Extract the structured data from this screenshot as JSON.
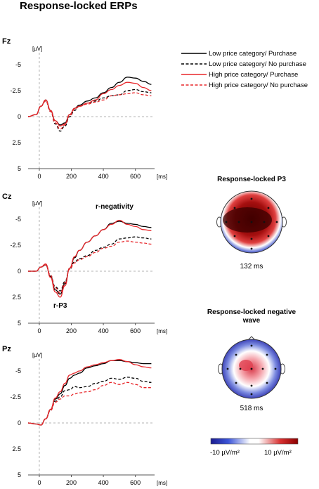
{
  "figure": {
    "title": "Response-locked ERPs",
    "colors": {
      "black": "#000000",
      "red": "#e8262a",
      "axis": "#555555",
      "zero": "#9a9a9a"
    }
  },
  "legend": [
    {
      "label": "Low price category/ Purchase",
      "color": "#000000",
      "dash": false
    },
    {
      "label": "Low price category/ No purchase",
      "color": "#000000",
      "dash": true
    },
    {
      "label": "High price category/ Purchase",
      "color": "#e8262a",
      "dash": false
    },
    {
      "label": "High price category/ No purchase",
      "color": "#e8262a",
      "dash": true
    }
  ],
  "annotations": {
    "r_negativity": "r-negativity",
    "r_p3": "r-P3"
  },
  "topomaps": [
    {
      "title": "Response-locked  P3",
      "time": "132 ms",
      "kind": "p3"
    },
    {
      "title_line1": "Response-locked  negative",
      "title_line2": "wave",
      "time": "518 ms",
      "kind": "neg"
    }
  ],
  "colorbar": {
    "min_label": "-10 µV/m²",
    "max_label": "10 µV/m²",
    "colors": [
      "#1b1b8f",
      "#ffffff",
      "#8b0000"
    ]
  },
  "chart_data": [
    {
      "type": "line",
      "electrode": "Fz",
      "ylabel": "[µV]",
      "xlabel": "[ms]",
      "xlim": [
        -70,
        720
      ],
      "ylim": [
        5,
        -5
      ],
      "yticks": [
        -5,
        -2.5,
        0,
        2.5,
        5
      ],
      "ytick_labels": [
        "-5",
        "-2.5",
        "0",
        "2.5",
        "5"
      ],
      "xticks": [
        0,
        200,
        400,
        600
      ],
      "xtick_labels": [
        "0",
        "200",
        "400",
        "600"
      ],
      "x": [
        -70,
        -20,
        10,
        40,
        70,
        100,
        130,
        160,
        190,
        220,
        250,
        300,
        350,
        400,
        450,
        500,
        550,
        600,
        650,
        700
      ],
      "series": [
        {
          "name": "Low price category/ Purchase",
          "values": [
            0,
            -0.2,
            -1.0,
            -1.6,
            -0.6,
            0.4,
            0.8,
            0.6,
            -0.2,
            -0.8,
            -1.1,
            -1.5,
            -1.8,
            -2.3,
            -2.8,
            -3.3,
            -3.8,
            -3.7,
            -3.4,
            -3.1
          ]
        },
        {
          "name": "Low price category/ No purchase",
          "values": [
            0,
            -0.2,
            -1.0,
            -1.5,
            -0.5,
            0.7,
            1.4,
            0.9,
            0.0,
            -0.6,
            -1.0,
            -1.3,
            -1.5,
            -1.8,
            -2.0,
            -2.1,
            -2.5,
            -2.6,
            -2.4,
            -2.3
          ]
        },
        {
          "name": "High price category/ Purchase",
          "values": [
            0,
            -0.2,
            -1.0,
            -1.6,
            -0.6,
            0.4,
            0.9,
            0.7,
            -0.2,
            -0.8,
            -1.0,
            -1.3,
            -1.6,
            -2.2,
            -2.6,
            -3.0,
            -3.3,
            -3.2,
            -2.8,
            -2.5
          ]
        },
        {
          "name": "High price category/ No purchase",
          "values": [
            0,
            -0.2,
            -1.0,
            -1.5,
            -0.5,
            0.6,
            1.2,
            0.8,
            -0.1,
            -0.7,
            -1.0,
            -1.2,
            -1.4,
            -1.6,
            -2.0,
            -2.1,
            -2.2,
            -2.3,
            -2.1,
            -2.0
          ]
        }
      ]
    },
    {
      "type": "line",
      "electrode": "Cz",
      "ylabel": "[µV]",
      "xlabel": "[ms]",
      "xlim": [
        -70,
        720
      ],
      "ylim": [
        5,
        -5
      ],
      "yticks": [
        -5,
        -2.5,
        0,
        2.5,
        5
      ],
      "ytick_labels": [
        "-5",
        "-2.5",
        "0",
        "2.5",
        "5"
      ],
      "xticks": [
        0,
        200,
        400,
        600
      ],
      "xtick_labels": [
        "0",
        "200",
        "400",
        "600"
      ],
      "x": [
        -70,
        -20,
        10,
        40,
        70,
        100,
        130,
        160,
        190,
        220,
        250,
        300,
        350,
        400,
        450,
        500,
        550,
        600,
        650,
        700
      ],
      "series": [
        {
          "name": "Low price category/ Purchase",
          "values": [
            0,
            0.0,
            -0.4,
            -0.6,
            0.5,
            1.8,
            2.2,
            1.2,
            -0.3,
            -1.3,
            -2.0,
            -2.8,
            -3.4,
            -4.0,
            -4.6,
            -4.8,
            -4.6,
            -4.5,
            -4.3,
            -4.2
          ]
        },
        {
          "name": "Low price category/ No purchase",
          "values": [
            0,
            0.0,
            -0.4,
            -0.6,
            0.4,
            1.5,
            1.9,
            1.0,
            -0.2,
            -0.9,
            -1.2,
            -1.5,
            -2.0,
            -2.3,
            -2.6,
            -3.1,
            -3.2,
            -3.3,
            -3.2,
            -3.1
          ]
        },
        {
          "name": "High price category/ Purchase",
          "values": [
            0,
            0.0,
            -0.4,
            -0.7,
            0.6,
            2.0,
            2.5,
            1.4,
            -0.3,
            -1.4,
            -2.0,
            -2.8,
            -3.4,
            -4.0,
            -4.5,
            -4.9,
            -4.5,
            -4.3,
            -4.0,
            -3.9
          ]
        },
        {
          "name": "High price category/ No purchase",
          "values": [
            0,
            0.0,
            -0.4,
            -0.6,
            0.4,
            1.6,
            2.1,
            1.1,
            -0.2,
            -0.8,
            -1.1,
            -1.4,
            -1.8,
            -2.2,
            -2.4,
            -2.8,
            -2.9,
            -2.8,
            -2.7,
            -2.6
          ]
        }
      ]
    },
    {
      "type": "line",
      "electrode": "Pz",
      "ylabel": "[µV]",
      "xlabel": "[ms]",
      "xlim": [
        -70,
        720
      ],
      "ylim": [
        5,
        -5
      ],
      "yticks": [
        -5,
        -2.5,
        0,
        2.5,
        5
      ],
      "ytick_labels": [
        "-5",
        "-2.5",
        "0",
        "2.5",
        "5"
      ],
      "xticks": [
        0,
        200,
        400,
        600
      ],
      "xtick_labels": [
        "0",
        "200",
        "400",
        "600"
      ],
      "x": [
        -70,
        -20,
        10,
        40,
        70,
        100,
        130,
        160,
        190,
        220,
        250,
        300,
        350,
        400,
        450,
        500,
        550,
        600,
        650,
        700
      ],
      "series": [
        {
          "name": "Low price category/ Purchase",
          "values": [
            0,
            0.1,
            0.2,
            -0.4,
            -1.3,
            -2.3,
            -2.8,
            -3.6,
            -4.3,
            -4.6,
            -4.8,
            -5.3,
            -5.5,
            -5.7,
            -6.0,
            -6.0,
            -5.9,
            -5.8,
            -5.7,
            -5.7
          ]
        },
        {
          "name": "Low price category/ No purchase",
          "values": [
            0,
            0.1,
            0.2,
            -0.4,
            -1.2,
            -2.1,
            -2.5,
            -3.1,
            -3.2,
            -3.5,
            -3.4,
            -3.5,
            -3.8,
            -4.0,
            -4.3,
            -4.2,
            -4.4,
            -4.3,
            -4.0,
            -3.9
          ]
        },
        {
          "name": "High price category/ Purchase",
          "values": [
            0,
            0.1,
            0.2,
            -0.4,
            -1.3,
            -2.4,
            -3.0,
            -3.8,
            -4.6,
            -4.8,
            -5.0,
            -5.4,
            -5.6,
            -5.8,
            -6.0,
            -6.1,
            -5.9,
            -5.6,
            -5.4,
            -5.3
          ]
        },
        {
          "name": "High price category/ No purchase",
          "values": [
            0,
            0.1,
            0.2,
            -0.4,
            -1.2,
            -2.0,
            -2.3,
            -2.6,
            -2.6,
            -2.8,
            -2.9,
            -3.0,
            -3.2,
            -3.6,
            -3.9,
            -3.7,
            -3.9,
            -3.7,
            -3.4,
            -3.4
          ]
        }
      ]
    }
  ]
}
